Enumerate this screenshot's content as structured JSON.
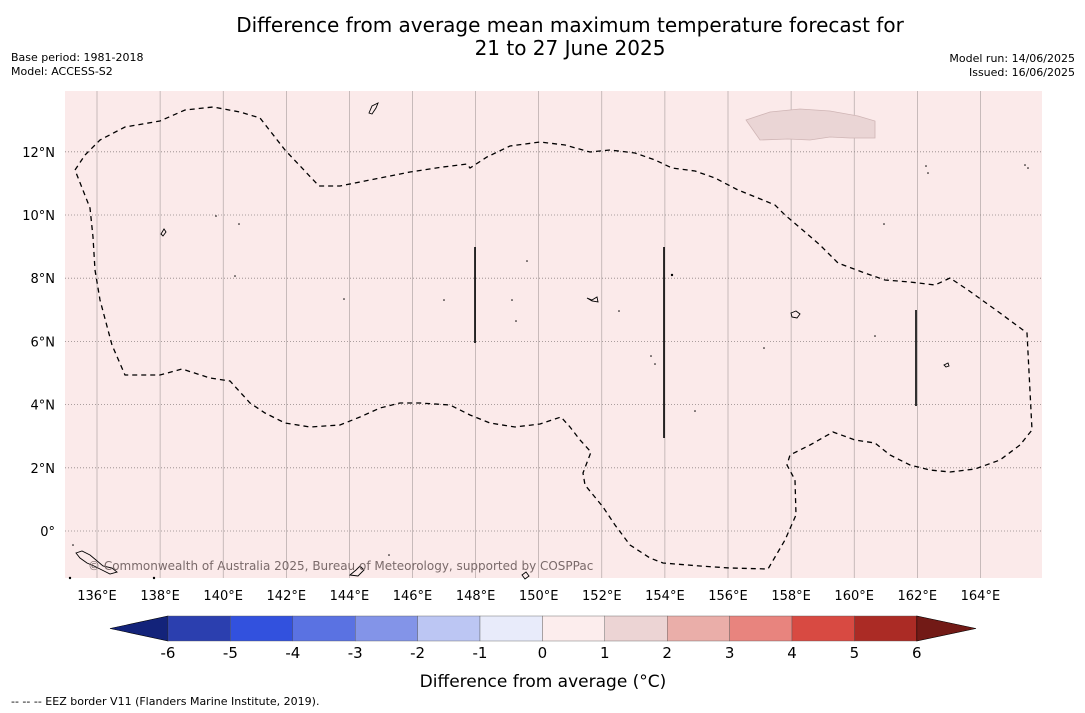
{
  "title_line1": "Difference from average mean maximum temperature forecast for",
  "title_line2": "21 to 27 June 2025",
  "base_period": "Base period: 1981-2018",
  "model": "Model: ACCESS-S2",
  "model_run": "Model run: 14/06/2025",
  "issued": "Issued: 16/06/2025",
  "copyright": "© Commonwealth of Australia 2025, Bureau of Meteorology, supported by COSPPac",
  "footnote": "--  --  -- EEZ border V11 (Flanders Marine Institute, 2019).",
  "map": {
    "lon_labels": [
      "136°E",
      "138°E",
      "140°E",
      "142°E",
      "144°E",
      "146°E",
      "148°E",
      "150°E",
      "152°E",
      "154°E",
      "156°E",
      "158°E",
      "160°E",
      "162°E",
      "164°E"
    ],
    "lat_labels": [
      "12°N",
      "10°N",
      "8°N",
      "6°N",
      "4°N",
      "2°N",
      "0°"
    ],
    "background_color": "#fbeaea",
    "anomaly_patch_color": "#ead5d5"
  },
  "colorbar": {
    "label": "Difference from average (°C)",
    "ticks": [
      "-6",
      "-5",
      "-4",
      "-3",
      "-2",
      "-1",
      "0",
      "1",
      "2",
      "3",
      "4",
      "5",
      "6"
    ],
    "colors": [
      "#13237a",
      "#2b3faf",
      "#3251de",
      "#5a72e2",
      "#8394e8",
      "#bcc6f3",
      "#e8ebfa",
      "#fceded",
      "#ecd4d4",
      "#eaaea9",
      "#e8847e",
      "#d84a42",
      "#ab2b25",
      "#721a16"
    ]
  }
}
